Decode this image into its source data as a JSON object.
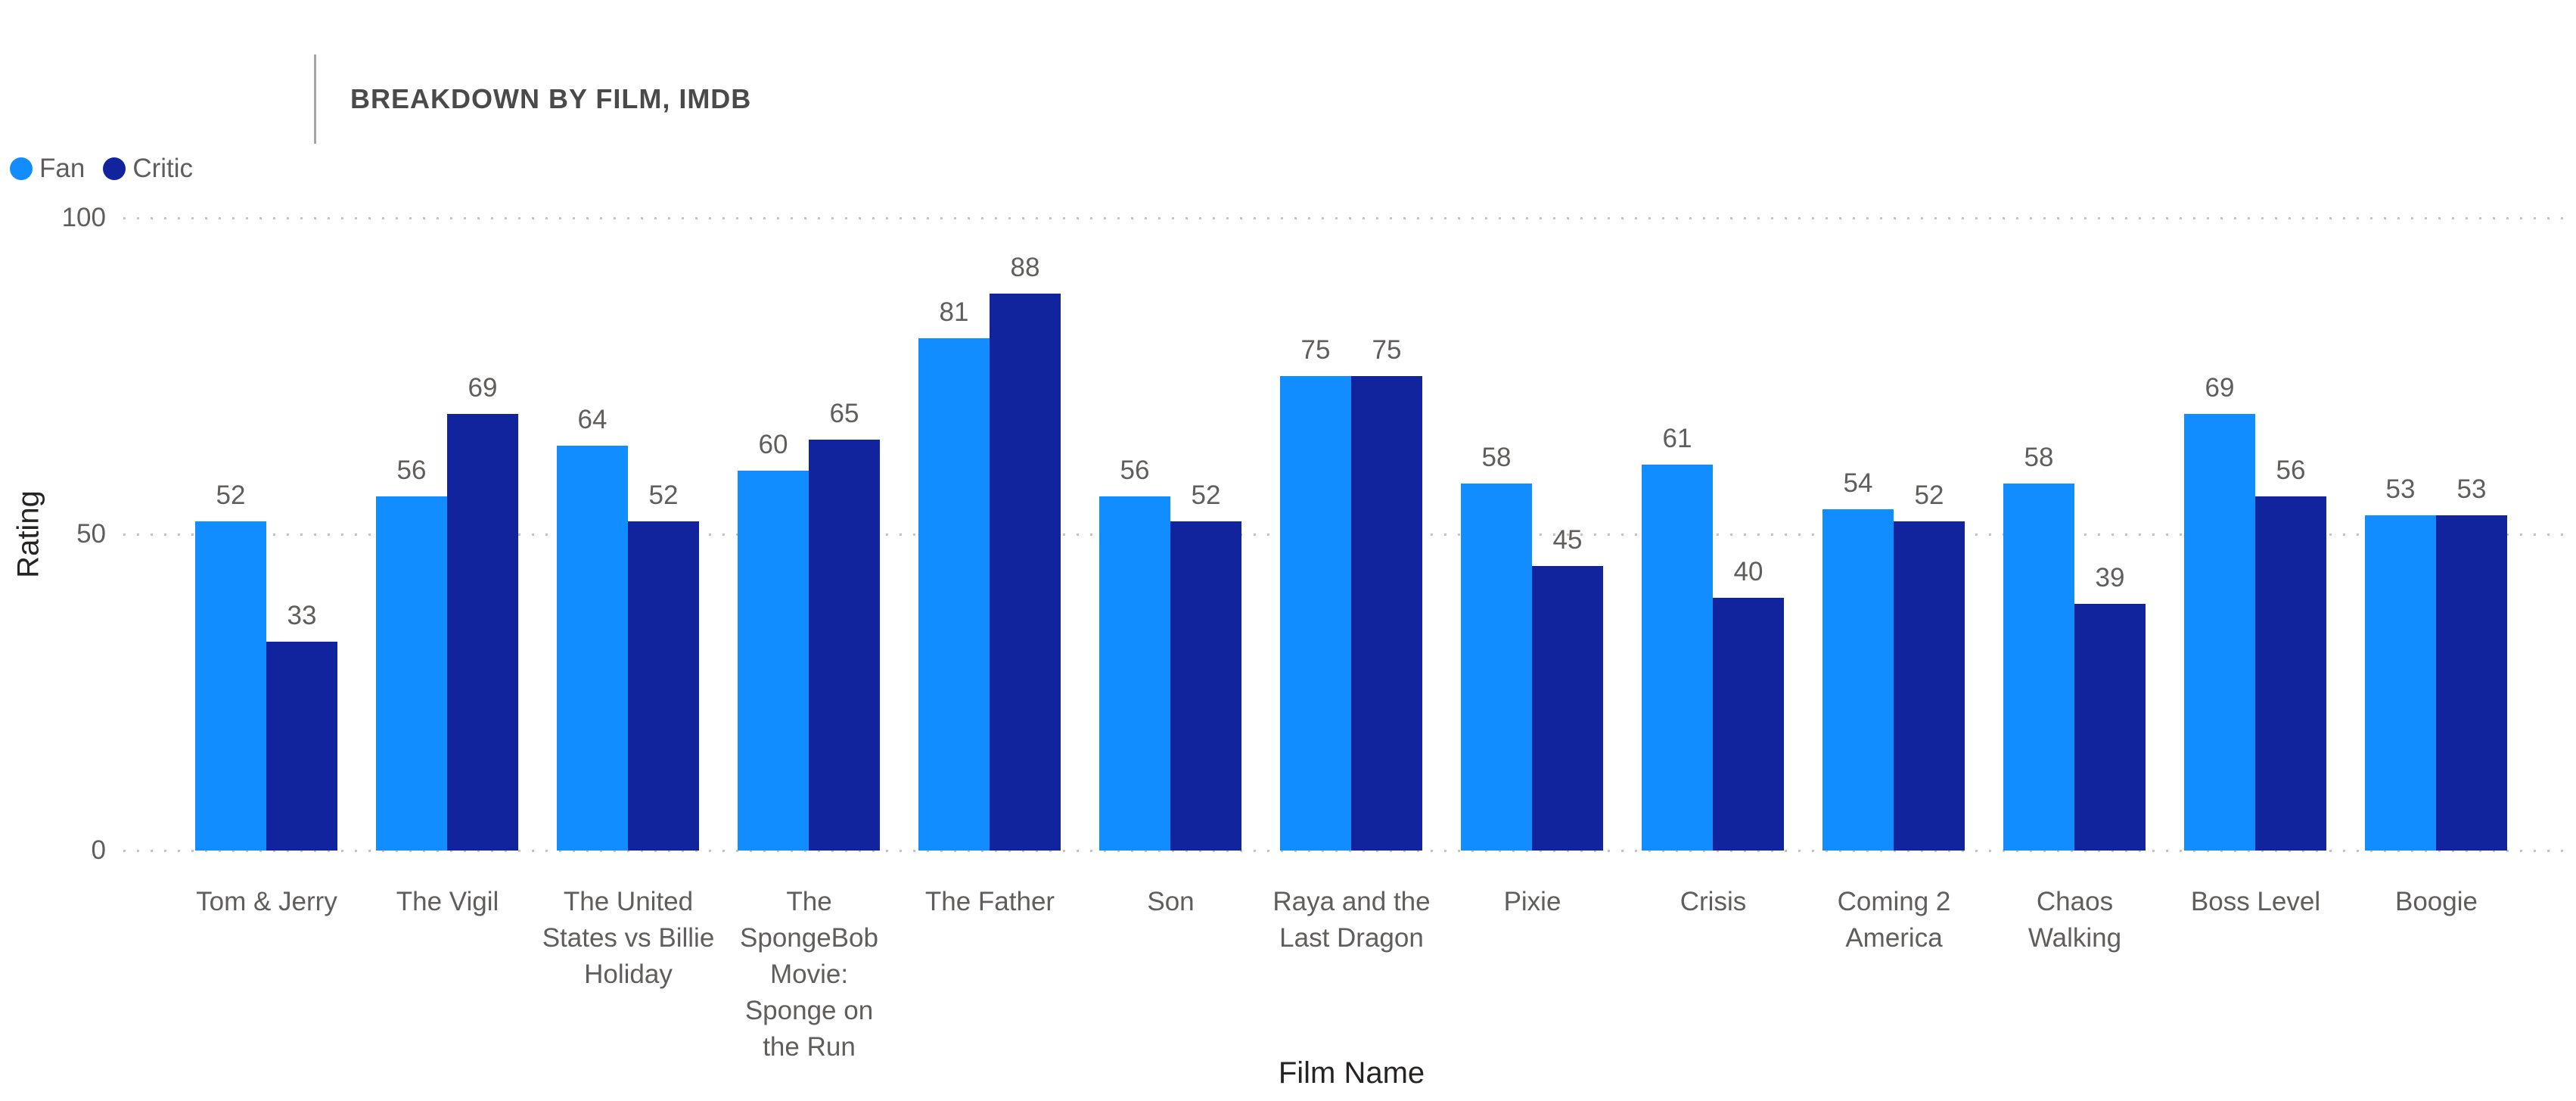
{
  "header": {
    "title": "BREAKDOWN BY FILM, IMDB"
  },
  "legend": {
    "items": [
      {
        "label": "Fan",
        "color": "#118DFF"
      },
      {
        "label": "Critic",
        "color": "#12239E"
      }
    ]
  },
  "y_axis": {
    "title": "Rating",
    "tick_labels": [
      "0",
      "50",
      "100"
    ]
  },
  "x_axis": {
    "title": "Film Name"
  },
  "colors": {
    "fan": "#118DFF",
    "critic": "#12239E",
    "gridline": "#C7C5C3",
    "label_gray": "#605E5C"
  },
  "chart_data": {
    "type": "bar",
    "title": "BREAKDOWN BY FILM, IMDB",
    "categories": [
      "Tom & Jerry",
      "The Vigil",
      "The United\nStates vs Billie\nHoliday",
      "The\nSpongeBob\nMovie:\nSponge on\nthe Run",
      "The Father",
      "Son",
      "Raya and the\nLast Dragon",
      "Pixie",
      "Crisis",
      "Coming 2\nAmerica",
      "Chaos\nWalking",
      "Boss Level",
      "Boogie"
    ],
    "series": [
      {
        "name": "Fan",
        "color": "#118DFF",
        "values": [
          52,
          56,
          64,
          60,
          81,
          56,
          75,
          58,
          61,
          54,
          58,
          69,
          53
        ]
      },
      {
        "name": "Critic",
        "color": "#12239E",
        "values": [
          33,
          69,
          52,
          65,
          88,
          52,
          75,
          45,
          40,
          52,
          39,
          56,
          53
        ]
      }
    ],
    "xlabel": "Film Name",
    "ylabel": "Rating",
    "ylim": [
      0,
      100
    ],
    "yticks": [
      0,
      50,
      100
    ],
    "grid": "horizontal-dotted",
    "legend_position": "top-left"
  }
}
